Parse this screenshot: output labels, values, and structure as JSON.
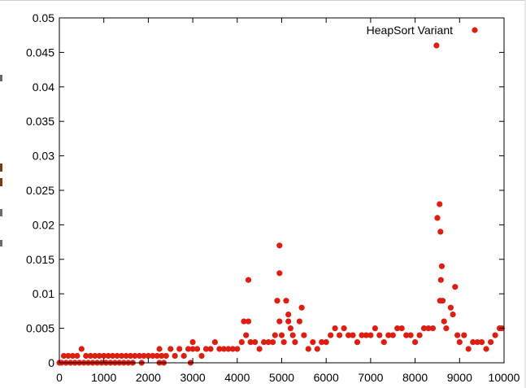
{
  "chart_data": {
    "type": "scatter",
    "title": "",
    "xlabel": "",
    "ylabel": "",
    "xlim": [
      0,
      10000
    ],
    "ylim": [
      0,
      0.05
    ],
    "grid": false,
    "legend_position": "top-right",
    "x_ticks": [
      "0",
      "1000",
      "2000",
      "3000",
      "4000",
      "5000",
      "6000",
      "7000",
      "8000",
      "9000",
      "10000"
    ],
    "y_ticks": [
      "0",
      "0.005",
      "0.01",
      "0.015",
      "0.02",
      "0.025",
      "0.03",
      "0.035",
      "0.04",
      "0.045",
      "0.05"
    ],
    "series": [
      {
        "name": "HeapSort Variant",
        "color": "#dd1f13",
        "marker": "circle",
        "points": [
          [
            0,
            0
          ],
          [
            100,
            0.001
          ],
          [
            200,
            0.001
          ],
          [
            300,
            0.001
          ],
          [
            400,
            0.001
          ],
          [
            500,
            0.002
          ],
          [
            600,
            0.001
          ],
          [
            700,
            0.001
          ],
          [
            800,
            0.001
          ],
          [
            900,
            0.001
          ],
          [
            50,
            0
          ],
          [
            150,
            0
          ],
          [
            250,
            0
          ],
          [
            350,
            0
          ],
          [
            450,
            0
          ],
          [
            550,
            0
          ],
          [
            650,
            0
          ],
          [
            750,
            0
          ],
          [
            850,
            0
          ],
          [
            950,
            0
          ],
          [
            1000,
            0.001
          ],
          [
            1100,
            0.001
          ],
          [
            1200,
            0.001
          ],
          [
            1300,
            0.001
          ],
          [
            1400,
            0.001
          ],
          [
            1500,
            0.001
          ],
          [
            1600,
            0.001
          ],
          [
            1700,
            0.001
          ],
          [
            1800,
            0.001
          ],
          [
            1900,
            0.001
          ],
          [
            1050,
            0
          ],
          [
            1150,
            0
          ],
          [
            1250,
            0
          ],
          [
            1350,
            0
          ],
          [
            1450,
            0
          ],
          [
            1550,
            0
          ],
          [
            1650,
            0
          ],
          [
            1850,
            0
          ],
          [
            2000,
            0.001
          ],
          [
            2100,
            0.001
          ],
          [
            2200,
            0.001
          ],
          [
            2250,
            0.002
          ],
          [
            2300,
            0.001
          ],
          [
            2400,
            0.001
          ],
          [
            2500,
            0.002
          ],
          [
            2600,
            0.001
          ],
          [
            2700,
            0.002
          ],
          [
            2800,
            0.001
          ],
          [
            2900,
            0.002
          ],
          [
            2250,
            0
          ],
          [
            2350,
            0
          ],
          [
            3000,
            0.002
          ],
          [
            3000,
            0.003
          ],
          [
            3100,
            0.002
          ],
          [
            3200,
            0.001
          ],
          [
            3300,
            0.002
          ],
          [
            3400,
            0.002
          ],
          [
            3500,
            0.003
          ],
          [
            3600,
            0.002
          ],
          [
            3700,
            0.002
          ],
          [
            3800,
            0.002
          ],
          [
            3900,
            0.002
          ],
          [
            2950,
            0
          ],
          [
            4000,
            0.002
          ],
          [
            4100,
            0.003
          ],
          [
            4150,
            0.006
          ],
          [
            4200,
            0.004
          ],
          [
            4250,
            0.012
          ],
          [
            4250,
            0.006
          ],
          [
            4300,
            0.003
          ],
          [
            4400,
            0.003
          ],
          [
            4500,
            0.002
          ],
          [
            4600,
            0.003
          ],
          [
            4700,
            0.003
          ],
          [
            4800,
            0.003
          ],
          [
            4850,
            0.004
          ],
          [
            4900,
            0.009
          ],
          [
            4950,
            0.017
          ],
          [
            4950,
            0.013
          ],
          [
            4950,
            0.006
          ],
          [
            5000,
            0.004
          ],
          [
            5050,
            0.003
          ],
          [
            5100,
            0.009
          ],
          [
            5150,
            0.007
          ],
          [
            5150,
            0.006
          ],
          [
            5200,
            0.005
          ],
          [
            5250,
            0.004
          ],
          [
            5300,
            0.003
          ],
          [
            5400,
            0.006
          ],
          [
            5450,
            0.008
          ],
          [
            5500,
            0.004
          ],
          [
            5600,
            0.002
          ],
          [
            5700,
            0.003
          ],
          [
            5800,
            0.002
          ],
          [
            5900,
            0.003
          ],
          [
            6000,
            0.003
          ],
          [
            6100,
            0.004
          ],
          [
            6200,
            0.005
          ],
          [
            6300,
            0.004
          ],
          [
            6400,
            0.005
          ],
          [
            6500,
            0.004
          ],
          [
            6600,
            0.004
          ],
          [
            6700,
            0.003
          ],
          [
            6800,
            0.004
          ],
          [
            6900,
            0.004
          ],
          [
            7000,
            0.004
          ],
          [
            7100,
            0.005
          ],
          [
            7200,
            0.004
          ],
          [
            7300,
            0.003
          ],
          [
            7400,
            0.004
          ],
          [
            7500,
            0.004
          ],
          [
            7600,
            0.005
          ],
          [
            7700,
            0.005
          ],
          [
            7800,
            0.004
          ],
          [
            7900,
            0.004
          ],
          [
            8000,
            0.003
          ],
          [
            8100,
            0.004
          ],
          [
            8200,
            0.005
          ],
          [
            8300,
            0.005
          ],
          [
            8400,
            0.005
          ],
          [
            8480,
            0.046
          ],
          [
            8500,
            0.021
          ],
          [
            8550,
            0.023
          ],
          [
            8570,
            0.019
          ],
          [
            8600,
            0.014
          ],
          [
            8580,
            0.012
          ],
          [
            8560,
            0.009
          ],
          [
            8620,
            0.009
          ],
          [
            8650,
            0.006
          ],
          [
            8700,
            0.005
          ],
          [
            8800,
            0.008
          ],
          [
            8850,
            0.007
          ],
          [
            8900,
            0.011
          ],
          [
            8950,
            0.004
          ],
          [
            9000,
            0.003
          ],
          [
            9100,
            0.004
          ],
          [
            9200,
            0.002
          ],
          [
            9300,
            0.003
          ],
          [
            9400,
            0.003
          ],
          [
            9500,
            0.003
          ],
          [
            9600,
            0.002
          ],
          [
            9700,
            0.003
          ],
          [
            9800,
            0.004
          ],
          [
            9900,
            0.005
          ],
          [
            9950,
            0.005
          ]
        ]
      }
    ]
  }
}
